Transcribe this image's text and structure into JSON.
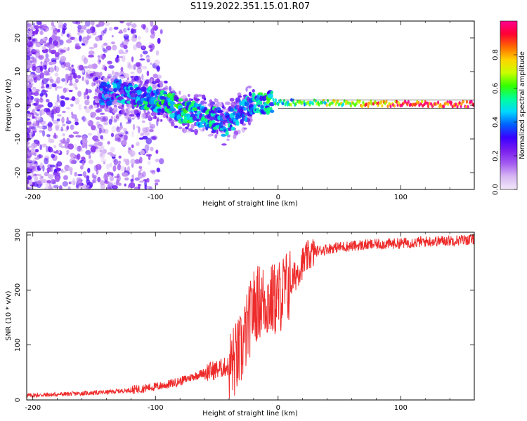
{
  "title": "S119.2022.351.15.01.R07",
  "chart_data": [
    {
      "type": "heatmap",
      "xlabel": "Height of straight line (km)",
      "ylabel": "Frequency (Hz)",
      "xlim": [
        -205,
        160
      ],
      "ylim": [
        -25,
        25
      ],
      "xticks": [
        -200,
        -100,
        0,
        100
      ],
      "yticks": [
        -20,
        -10,
        0,
        10,
        20
      ],
      "colorbar": {
        "label": "Normalized spectral amplitude",
        "range": [
          0,
          1
        ],
        "ticks": [
          "0.0",
          "0.2",
          "0.4",
          "0.6",
          "0.8"
        ],
        "colors": [
          "#f3e8fb",
          "#d7b8f2",
          "#a45cf0",
          "#7a1ff0",
          "#3a00ff",
          "#0060ff",
          "#00d8ff",
          "#00ff9a",
          "#33ff00",
          "#c8ff00",
          "#ffd400",
          "#ff6a00",
          "#ff0033",
          "#ff0090"
        ]
      },
      "ridge": [
        {
          "x": -140,
          "f": 3.5,
          "a": 0.3
        },
        {
          "x": -130,
          "f": 4.0,
          "a": 0.35
        },
        {
          "x": -120,
          "f": 3.0,
          "a": 0.4
        },
        {
          "x": -110,
          "f": 2.0,
          "a": 0.4
        },
        {
          "x": -100,
          "f": 1.5,
          "a": 0.45
        },
        {
          "x": -90,
          "f": 1.0,
          "a": 0.45
        },
        {
          "x": -80,
          "f": -1.5,
          "a": 0.45
        },
        {
          "x": -70,
          "f": -2.0,
          "a": 0.45
        },
        {
          "x": -60,
          "f": -3.5,
          "a": 0.4
        },
        {
          "x": -50,
          "f": -4.0,
          "a": 0.4
        },
        {
          "x": -45,
          "f": -6.0,
          "a": 0.35
        },
        {
          "x": -40,
          "f": -5.0,
          "a": 0.35
        },
        {
          "x": -30,
          "f": -2.0,
          "a": 0.35
        },
        {
          "x": -20,
          "f": 0.5,
          "a": 0.4
        },
        {
          "x": -10,
          "f": 1.0,
          "a": 0.45
        },
        {
          "x": 0,
          "f": 1.0,
          "a": 0.5
        },
        {
          "x": 20,
          "f": 0.8,
          "a": 0.55
        },
        {
          "x": 40,
          "f": 0.6,
          "a": 0.6
        },
        {
          "x": 60,
          "f": 0.5,
          "a": 0.65
        },
        {
          "x": 80,
          "f": 0.5,
          "a": 0.8
        },
        {
          "x": 100,
          "f": 0.4,
          "a": 0.85
        },
        {
          "x": 120,
          "f": 0.3,
          "a": 0.9
        },
        {
          "x": 140,
          "f": 0.3,
          "a": 0.95
        },
        {
          "x": 160,
          "f": 0.3,
          "a": 0.95
        }
      ]
    },
    {
      "type": "line",
      "xlabel": "Height of straight line (km)",
      "ylabel": "SNR (10 * v/v)",
      "xlim": [
        -205,
        160
      ],
      "ylim": [
        0,
        305
      ],
      "xticks": [
        -200,
        -100,
        0,
        100
      ],
      "yticks": [
        0,
        100,
        200,
        300
      ],
      "color": "#ee2b2b",
      "series": [
        {
          "x": [
            -205,
            -180,
            -160,
            -140,
            -120,
            -100,
            -90,
            -80,
            -70,
            -60,
            -50,
            -40,
            -35,
            -30,
            -25,
            -20,
            -15,
            -10,
            -5,
            0,
            5,
            10,
            15,
            20,
            25,
            30,
            40,
            50,
            60,
            80,
            100,
            120,
            140,
            160
          ],
          "values": [
            8,
            10,
            12,
            14,
            18,
            24,
            28,
            34,
            42,
            50,
            55,
            62,
            72,
            90,
            130,
            170,
            180,
            180,
            180,
            185,
            200,
            210,
            230,
            250,
            262,
            270,
            275,
            278,
            280,
            283,
            285,
            288,
            290,
            292
          ]
        }
      ]
    }
  ]
}
